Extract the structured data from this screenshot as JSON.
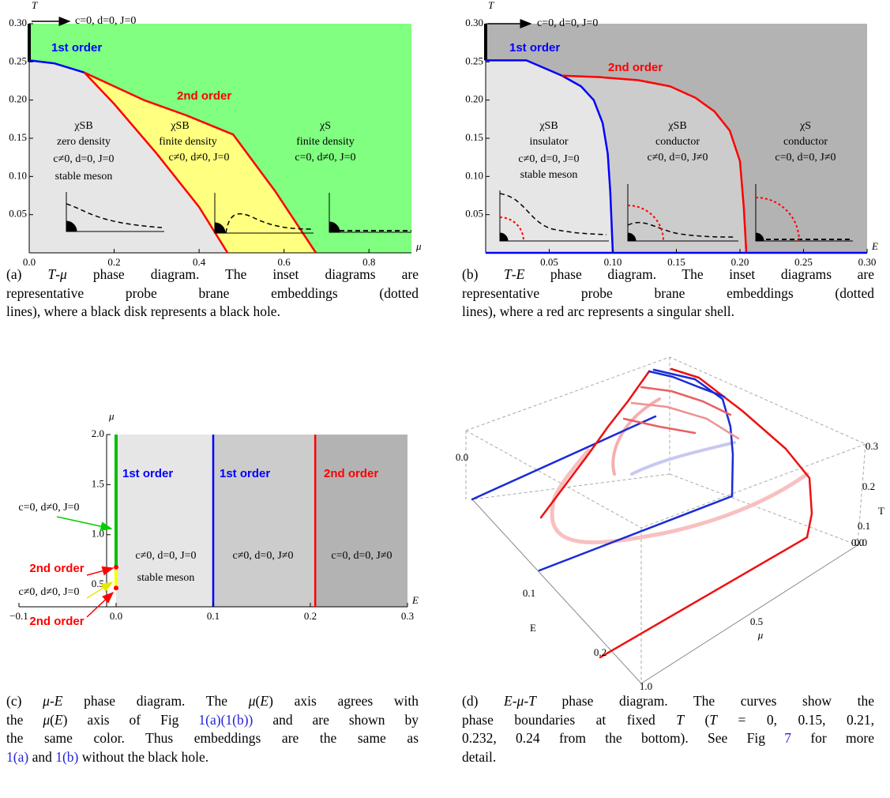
{
  "panels": [
    {
      "xlabel": "μ",
      "ylabel": "T",
      "xlim": [
        0,
        0.9
      ],
      "ylim": [
        0,
        0.3
      ],
      "xticks": [
        {
          "value": 0,
          "label": "0.0"
        },
        0.2,
        0.4,
        0.6,
        0.8
      ],
      "yticks": [
        0.05,
        {
          "value": 0.1,
          "label": "0.10"
        },
        0.15,
        {
          "value": 0.2,
          "label": "0.20"
        },
        0.25,
        {
          "value": 0.3,
          "label": "0.30"
        }
      ],
      "background": "#80ff80",
      "region_colors": [
        "#e6e6e6",
        "#ffff80"
      ],
      "boundaries": [
        {
          "color": "#000000",
          "x": [
            0,
            0
          ],
          "values": [
            0.25,
            0.3
          ]
        },
        {
          "color": "#0000ff",
          "x": [
            0,
            0.06,
            0.13
          ],
          "values": [
            0.252,
            0.248,
            0.236
          ]
        },
        {
          "color": "#ff0000",
          "x": [
            0.13,
            0.2,
            0.27,
            0.37,
            0.48,
            0.58,
            0.675
          ],
          "values": [
            0.236,
            0.218,
            0.2,
            0.18,
            0.155,
            0.08,
            0
          ]
        },
        {
          "color": "#ff0000",
          "x": [
            0.13,
            0.2,
            0.3,
            0.4,
            0.467
          ],
          "values": [
            0.236,
            0.195,
            0.13,
            0.06,
            0
          ]
        }
      ],
      "labels": [
        "c=0, d=0, J=0",
        "1st order",
        "2nd order",
        "χSB",
        "zero density",
        "c≠0, d=0, J=0",
        "stable meson",
        "χSB",
        "finite density",
        "c≠0, d≠0, J=0",
        "χS",
        "finite density",
        "c=0, d≠0, J=0"
      ],
      "caption": [
        [
          "(a) ",
          {
            "math": "T"
          },
          "-",
          {
            "math": "μ"
          },
          " phase diagram.  The inset diagrams are"
        ],
        [
          "representative probe brane embeddings (dotted"
        ],
        [
          "lines), where a black disk represents a black hole."
        ]
      ]
    },
    {
      "xlabel": "E",
      "ylabel": "T",
      "xlim": [
        0,
        0.3
      ],
      "ylim": [
        0,
        0.3
      ],
      "xticks": [
        0.05,
        {
          "value": 0.1,
          "label": "0.10"
        },
        0.15,
        {
          "value": 0.2,
          "label": "0.20"
        },
        0.25,
        {
          "value": 0.3,
          "label": "0.30"
        }
      ],
      "yticks": [
        0.05,
        {
          "value": 0.1,
          "label": "0.10"
        },
        0.15,
        {
          "value": 0.2,
          "label": "0.20"
        },
        0.25,
        {
          "value": 0.3,
          "label": "0.30"
        }
      ],
      "background": "#b3b3b3",
      "region_colors": [
        "#e6e6e6",
        "#cccccc"
      ],
      "boundaries": [
        {
          "color": "#000000",
          "x": [
            0,
            0
          ],
          "values": [
            0.252,
            0.3
          ]
        },
        {
          "color": "#0000ff",
          "x": [
            0,
            0.032,
            0.06,
            0.075,
            0.085,
            0.092,
            0.096,
            0.098,
            0.1
          ],
          "values": [
            0.252,
            0.252,
            0.232,
            0.218,
            0.2,
            0.17,
            0.13,
            0.08,
            0
          ]
        },
        {
          "color": "#ff0000",
          "x": [
            0.06,
            0.09,
            0.12,
            0.145,
            0.165,
            0.18,
            0.192,
            0.2,
            0.203,
            0.205
          ],
          "values": [
            0.232,
            0.23,
            0.226,
            0.218,
            0.203,
            0.185,
            0.16,
            0.12,
            0.06,
            0
          ]
        },
        {
          "color": "#0000ff",
          "x": [
            0,
            0.3
          ],
          "values": [
            0,
            0
          ]
        }
      ],
      "labels": [
        "c=0, d=0, J=0",
        "1st order",
        "2nd order",
        "χSB",
        "insulator",
        "c≠0, d=0, J=0",
        "stable meson",
        "χSB",
        "conductor",
        "c≠0, d=0, J≠0",
        "χS",
        "conductor",
        "c=0, d=0, J≠0"
      ],
      "caption": [
        [
          "(b) ",
          {
            "math": "T"
          },
          "-",
          {
            "math": "E"
          },
          " phase diagram.  The inset diagrams are"
        ],
        [
          "representative probe brane embeddings (dotted"
        ],
        [
          "lines), where a red arc represents a singular shell."
        ]
      ]
    },
    {
      "xlabel": "E",
      "ylabel": "μ",
      "xlim": [
        -0.1,
        0.3
      ],
      "ylim": [
        0.28,
        2.0
      ],
      "xticks": [
        {
          "value": -0.1,
          "label": "−0.1"
        },
        {
          "value": 0,
          "label": "0.0"
        },
        0.1,
        0.2,
        0.3
      ],
      "yticks": [
        0.5,
        {
          "value": 1,
          "label": "1.0"
        },
        1.5,
        {
          "value": 2,
          "label": "2.0"
        }
      ],
      "region_colors": [
        "#e6e6e6",
        "#cccccc",
        "#b3b3b3"
      ],
      "boundaries": [
        {
          "color": "#0000ff",
          "x": [
            0.1,
            0.1
          ],
          "values": [
            0.28,
            2.0
          ]
        },
        {
          "color": "#ff0000",
          "x": [
            0.205,
            0.205
          ],
          "values": [
            0.28,
            2.0
          ]
        },
        {
          "color": "#00c000",
          "x": [
            0,
            0
          ],
          "values": [
            0.675,
            2.0
          ]
        },
        {
          "color": "#ffff00",
          "x": [
            0,
            0
          ],
          "values": [
            0.467,
            0.675
          ]
        }
      ],
      "points": {
        "color": "#ff0000",
        "x": [
          0,
          0
        ],
        "values": [
          0.675,
          0.467
        ]
      },
      "labels": [
        "1st order",
        "1st order",
        "2nd order",
        "c≠0, d=0, J=0",
        "stable meson",
        "c≠0, d=0, J≠0",
        "c=0, d=0, J≠0",
        "c=0, d≠0, J=0",
        "2nd order",
        "c≠0, d≠0, J=0",
        "2nd order"
      ],
      "caption": [
        [
          "(c) ",
          {
            "math": "μ"
          },
          "-",
          {
            "math": "E"
          },
          " phase diagram. The ",
          {
            "math": "μ"
          },
          "(",
          {
            "math": "E"
          },
          ") axis agrees with"
        ],
        [
          "the ",
          {
            "math": "μ"
          },
          "(",
          {
            "math": "E"
          },
          ") axis of Fig ",
          {
            "link": "1(a)"
          },
          {
            "link": "(1(b))"
          },
          " and are shown by"
        ],
        [
          "the same color. Thus embeddings are the same as"
        ],
        [
          {
            "link": "1(a)"
          },
          " and ",
          {
            "link": "1(b)"
          },
          " without the black hole."
        ]
      ]
    },
    {
      "tick_labels": [
        "0.0",
        "0.1",
        "E",
        "0.2",
        "0.5",
        "μ",
        "1.0",
        "0.3",
        "0.2",
        "0.1",
        "T",
        "0.0",
        "0.0"
      ],
      "caption": [
        [
          "(d) ",
          {
            "math": "E"
          },
          "-",
          {
            "math": "μ"
          },
          "-",
          {
            "math": "T"
          },
          " phase diagram.  The curves show the"
        ],
        [
          "phase boundaries at fixed ",
          {
            "math": "T"
          },
          " (",
          {
            "math": "T"
          },
          " = 0, 0.15, 0.21,"
        ],
        [
          "0.232, 0.24 from the bottom).  See Fig ",
          {
            "link": "7"
          },
          " for more"
        ],
        [
          "detail."
        ]
      ]
    }
  ]
}
